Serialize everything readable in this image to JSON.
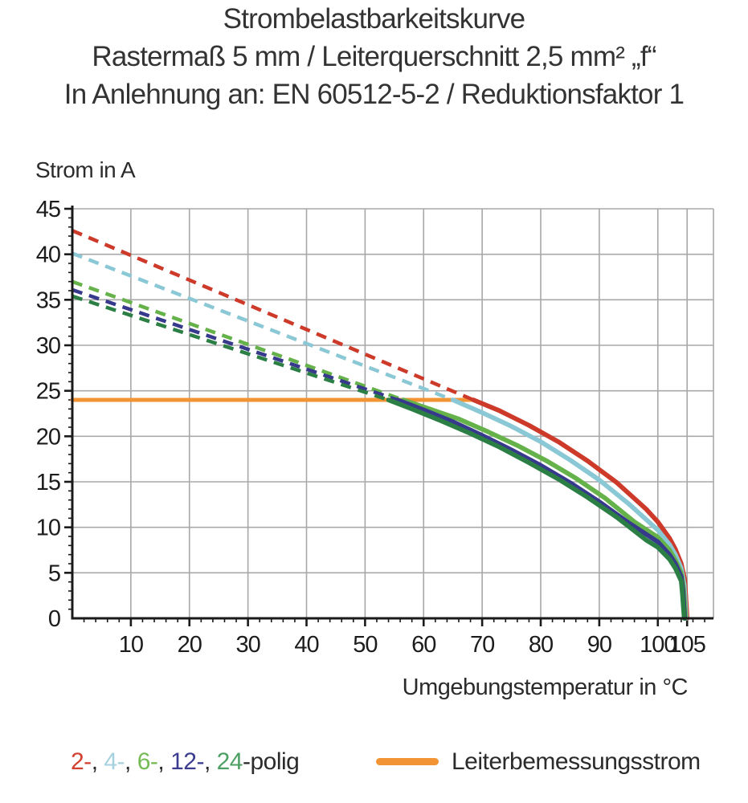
{
  "title": {
    "line1": "Strombelastbarkeitskurve",
    "line2": "Rastermaß 5 mm / Leiterquerschnitt 2,5 mm² „f“",
    "line3": "In Anlehnung an: EN 60512-5-2 / Reduktionsfaktor 1"
  },
  "chart_data": {
    "type": "line",
    "title": "Strombelastbarkeitskurve",
    "xlabel": "Umgebungstemperatur in °C",
    "ylabel": "Strom in A",
    "xlim": [
      0,
      109.5
    ],
    "ylim": [
      0,
      45
    ],
    "xticks": [
      10,
      20,
      30,
      40,
      50,
      60,
      70,
      80,
      90,
      100,
      105
    ],
    "yticks": [
      0,
      5,
      10,
      15,
      20,
      25,
      30,
      35,
      40,
      45
    ],
    "x_minor_step": 2,
    "y_minor_step": 1,
    "grid": true,
    "legend_position": "bottom",
    "style": {
      "grid_color": "#a8a8a8",
      "axis_color": "#1a1a1a",
      "text_color": "#1c1c1c"
    },
    "rated_current": {
      "label": "Leiterbemessungsstrom",
      "value": 24,
      "x_start": 0,
      "x_end": 68.5,
      "color": "#f29433"
    },
    "series": [
      {
        "name": "2-polig",
        "color": "#cd3a2a",
        "dashed": [
          [
            0,
            42.6
          ],
          [
            68.5,
            24
          ]
        ],
        "solid": [
          [
            68.5,
            24
          ],
          [
            73,
            22.8
          ],
          [
            78,
            21.2
          ],
          [
            83,
            19.4
          ],
          [
            88,
            17.3
          ],
          [
            93,
            14.9
          ],
          [
            98,
            12.0
          ],
          [
            100,
            10.6
          ],
          [
            102,
            8.8
          ],
          [
            103,
            7.6
          ],
          [
            104,
            6.0
          ],
          [
            104.6,
            4.2
          ],
          [
            105,
            0
          ]
        ]
      },
      {
        "name": "4-polig",
        "color": "#8bc8d5",
        "dashed": [
          [
            0,
            40.1
          ],
          [
            65,
            24
          ]
        ],
        "solid": [
          [
            65,
            24
          ],
          [
            70,
            22.6
          ],
          [
            75,
            21.1
          ],
          [
            80,
            19.4
          ],
          [
            85,
            17.4
          ],
          [
            90,
            15.2
          ],
          [
            95,
            12.6
          ],
          [
            100,
            9.7
          ],
          [
            102,
            8.1
          ],
          [
            103,
            7.0
          ],
          [
            104,
            5.5
          ],
          [
            104.5,
            3.7
          ],
          [
            104.85,
            0
          ]
        ]
      },
      {
        "name": "6-polig",
        "color": "#65b24a",
        "dashed": [
          [
            0,
            37.0
          ],
          [
            56.5,
            24
          ]
        ],
        "solid": [
          [
            56.5,
            24
          ],
          [
            61,
            23.0
          ],
          [
            66,
            21.9
          ],
          [
            71,
            20.5
          ],
          [
            76,
            19.0
          ],
          [
            81,
            17.3
          ],
          [
            86,
            15.4
          ],
          [
            91,
            13.2
          ],
          [
            96,
            10.6
          ],
          [
            100,
            8.9
          ],
          [
            102,
            7.5
          ],
          [
            103,
            6.4
          ],
          [
            104,
            5.0
          ],
          [
            104.4,
            3.3
          ],
          [
            104.75,
            0
          ]
        ]
      },
      {
        "name": "12-polig",
        "color": "#37398c",
        "dashed": [
          [
            0,
            36.1
          ],
          [
            55.5,
            24
          ]
        ],
        "solid": [
          [
            55.5,
            24
          ],
          [
            60,
            22.9
          ],
          [
            65,
            21.6
          ],
          [
            70,
            20.1
          ],
          [
            75,
            18.5
          ],
          [
            80,
            16.8
          ],
          [
            85,
            14.9
          ],
          [
            90,
            12.8
          ],
          [
            95,
            10.5
          ],
          [
            100,
            8.4
          ],
          [
            102,
            7.0
          ],
          [
            103,
            6.0
          ],
          [
            104,
            4.6
          ],
          [
            104.3,
            3.0
          ],
          [
            104.6,
            0
          ]
        ]
      },
      {
        "name": "24-polig",
        "color": "#2b7f45",
        "dashed": [
          [
            0,
            35.4
          ],
          [
            54,
            24
          ]
        ],
        "solid": [
          [
            54,
            24
          ],
          [
            58,
            23.0
          ],
          [
            63,
            21.7
          ],
          [
            68,
            20.3
          ],
          [
            73,
            18.8
          ],
          [
            78,
            17.1
          ],
          [
            83,
            15.3
          ],
          [
            88,
            13.3
          ],
          [
            93,
            11.1
          ],
          [
            98,
            8.6
          ],
          [
            100,
            7.8
          ],
          [
            102,
            6.5
          ],
          [
            103,
            5.5
          ],
          [
            104,
            4.1
          ],
          [
            104.2,
            2.7
          ],
          [
            104.5,
            0
          ]
        ]
      }
    ]
  },
  "legend": {
    "poles": {
      "items": [
        {
          "label": "2-",
          "color": "#d2402f"
        },
        {
          "label": "4-",
          "color": "#a5d2de"
        },
        {
          "label": "6-",
          "color": "#74ba55"
        },
        {
          "label": "12-",
          "color": "#3b3c90"
        },
        {
          "label": "24",
          "color": "#4d9f63"
        }
      ],
      "separator": ", ",
      "suffix": "-polig",
      "text_color": "#2b2b2b"
    },
    "rated": {
      "label": "Leiterbemessungsstrom",
      "color": "#f29433"
    }
  }
}
